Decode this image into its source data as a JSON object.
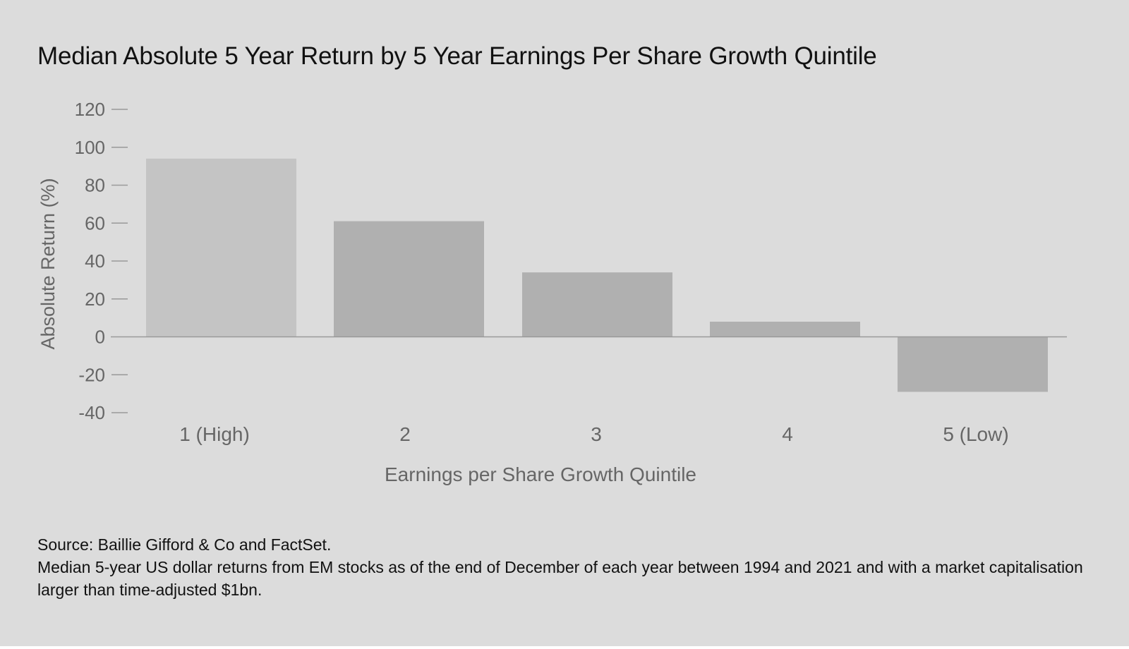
{
  "chart_data": {
    "type": "bar",
    "title": "Median Absolute 5 Year Return by 5 Year Earnings Per Share Growth Quintile",
    "xlabel": "Earnings per Share Growth Quintile",
    "ylabel": "Absolute Return (%)",
    "categories": [
      "1 (High)",
      "2",
      "3",
      "4",
      "5 (Low)"
    ],
    "values": [
      94,
      61,
      34,
      8,
      -29
    ],
    "ylim": [
      -40,
      120
    ],
    "yticks": [
      120,
      100,
      80,
      60,
      40,
      20,
      0,
      -20,
      -40
    ],
    "ytick_labels": [
      "120",
      "100",
      "80",
      "60",
      "40",
      "20",
      "0",
      "-20",
      "-40"
    ],
    "grid": false,
    "legend": "none",
    "colors": {
      "background": "#dcdcdc",
      "bars": [
        "#c4c4c4",
        "#b0b0b0",
        "#b0b0b0",
        "#b0b0b0",
        "#b0b0b0"
      ],
      "axis": "#999999",
      "tick_text": "#666666"
    }
  },
  "footnote": {
    "source": "Source: Baillie Gifford & Co and FactSet.",
    "note": "Median 5-year US dollar returns from EM stocks as of the end of December of each year between 1994 and 2021 and with a market capitalisation larger than time-adjusted $1bn."
  }
}
